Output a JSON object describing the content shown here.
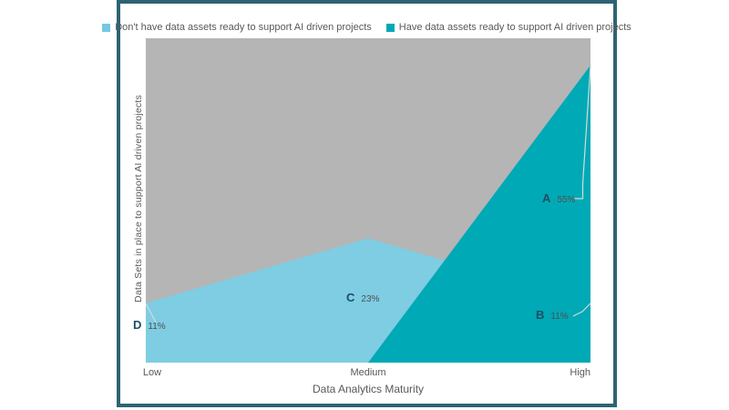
{
  "window": {
    "border_color": "#2e6374",
    "background": "#ffffff"
  },
  "legend": {
    "items": [
      {
        "label": "Don't have data assets ready to support AI driven projects",
        "color": "#73c9e0"
      },
      {
        "label": "Have data assets ready to support AI driven projects",
        "color": "#00a9b6"
      }
    ]
  },
  "axes": {
    "x_ticks": [
      "Low",
      "Medium",
      "High"
    ],
    "x_label": "Data Analytics Maturity",
    "y_label": "Data Sets in place to support AI driven projects"
  },
  "chart_data": {
    "type": "area",
    "title": "",
    "categories": [
      "Low",
      "Medium",
      "High"
    ],
    "series": [
      {
        "name": "Don't have data assets ready to support AI driven projects",
        "color": "#7ecde3",
        "values": [
          11,
          23,
          11
        ]
      },
      {
        "name": "Have data assets ready to support AI driven projects",
        "color": "#00a9b6",
        "values": [
          0,
          0,
          55
        ]
      }
    ],
    "unit": "%",
    "ylim": [
      0,
      60
    ],
    "grid": false,
    "legend_position": "top",
    "plot_background": "#b5b5b5",
    "leader_line_color": "#d9d9d9",
    "annotations": [
      {
        "id": "A",
        "text": "55%",
        "series": 1,
        "category": "High"
      },
      {
        "id": "B",
        "text": "11%",
        "series": 0,
        "category": "High"
      },
      {
        "id": "C",
        "text": "23%",
        "series": 0,
        "category": "Medium"
      },
      {
        "id": "D",
        "text": "11%",
        "series": 0,
        "category": "Low"
      }
    ]
  }
}
